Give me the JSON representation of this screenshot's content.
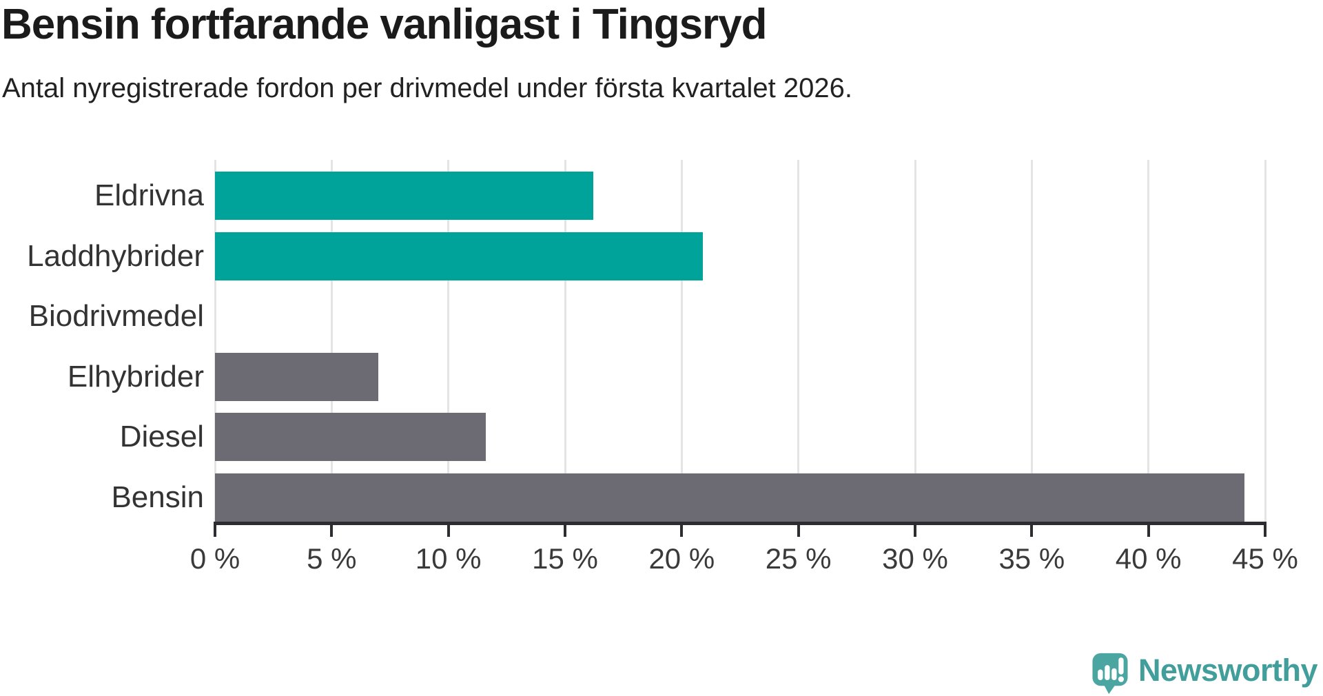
{
  "title": "Bensin fortfarande vanligast i Tingsryd",
  "subtitle": "Antal nyregistrerade fordon per drivmedel under första kvartalet 2026.",
  "chart_data": {
    "type": "bar",
    "orientation": "horizontal",
    "title": "Bensin fortfarande vanligast i Tingsryd",
    "subtitle": "Antal nyregistrerade fordon per drivmedel under första kvartalet 2026.",
    "categories": [
      "Eldrivna",
      "Laddhybrider",
      "Biodrivmedel",
      "Elhybrider",
      "Diesel",
      "Bensin"
    ],
    "values": [
      16.2,
      20.9,
      0,
      7.0,
      11.6,
      44.1
    ],
    "unit": "%",
    "xlim": [
      0,
      45
    ],
    "x_ticks": [
      0,
      5,
      10,
      15,
      20,
      25,
      30,
      35,
      40,
      45
    ],
    "x_tick_labels": [
      "0 %",
      "5 %",
      "10 %",
      "15 %",
      "20 %",
      "25 %",
      "30 %",
      "35 %",
      "40 %",
      "45 %"
    ],
    "grid": true,
    "legend": "none",
    "bar_colors": [
      "#00a39a",
      "#00a39a",
      "#6c6b74",
      "#6c6b74",
      "#6c6b74",
      "#6c6b74"
    ],
    "highlight_color": "#00a39a",
    "default_color": "#6c6b74",
    "gridline_color": "#e4e4e4",
    "axis_color": "#2d2c31"
  },
  "branding": {
    "logo_text": "Newsworthy",
    "logo_text_color": "#429e9b",
    "logo_icon": "newsworthy-speech-bubble-chart-icon",
    "logo_icon_color": "#4ba6a2"
  }
}
